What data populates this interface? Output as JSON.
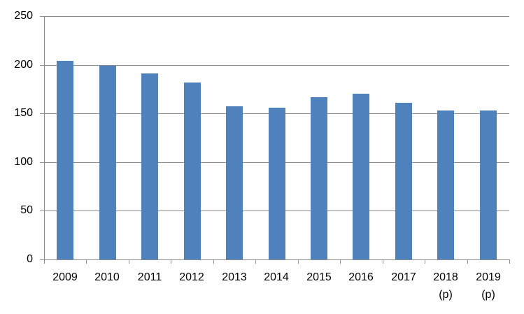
{
  "chart_data": {
    "type": "bar",
    "title": "",
    "xlabel": "",
    "ylabel": "",
    "categories": [
      "2009",
      "2010",
      "2011",
      "2012",
      "2013",
      "2014",
      "2015",
      "2016",
      "2017",
      "2018",
      "2019"
    ],
    "category_notes": [
      "",
      "",
      "",
      "",
      "",
      "",
      "",
      "",
      "",
      "(p)",
      "(p)"
    ],
    "values": [
      204,
      199,
      191,
      182,
      157,
      156,
      167,
      170,
      161,
      153,
      153
    ],
    "ylim": [
      0,
      250
    ],
    "yticks": [
      0,
      50,
      100,
      150,
      200,
      250
    ],
    "grid": true,
    "legend": false,
    "bar_color": "#4F81BD",
    "gridline_color": "#8C8C8C",
    "axis_color": "#8C8C8C",
    "text_color": "#000000",
    "background": "#FFFFFF"
  }
}
